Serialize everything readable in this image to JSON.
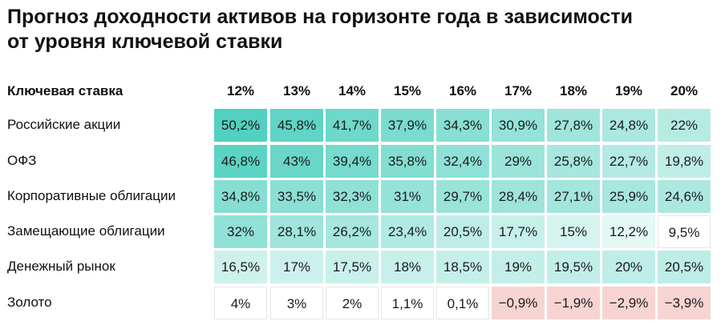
{
  "chart_data": {
    "type": "heatmap",
    "title": "Прогноз доходности активов на горизонте года в зависимости от уровня ключевой ставки",
    "title_lines": [
      "Прогноз доходности активов на горизонте года в зависимости",
      "от уровня ключевой ставки"
    ],
    "row_header": "Ключевая ставка",
    "columns": [
      "12%",
      "13%",
      "14%",
      "15%",
      "16%",
      "17%",
      "18%",
      "19%",
      "20%"
    ],
    "rows": [
      {
        "label": "Российские акции",
        "cells": [
          "50,2%",
          "45,8%",
          "41,7%",
          "37,9%",
          "34,3%",
          "30,9%",
          "27,8%",
          "24,8%",
          "22%"
        ],
        "values": [
          50.2,
          45.8,
          41.7,
          37.9,
          34.3,
          30.9,
          27.8,
          24.8,
          22
        ]
      },
      {
        "label": "ОФЗ",
        "cells": [
          "46,8%",
          "43%",
          "39,4%",
          "35,8%",
          "32,4%",
          "29%",
          "25,8%",
          "22,7%",
          "19,8%"
        ],
        "values": [
          46.8,
          43,
          39.4,
          35.8,
          32.4,
          29,
          25.8,
          22.7,
          19.8
        ]
      },
      {
        "label": "Корпоративные облигации",
        "cells": [
          "34,8%",
          "33,5%",
          "32,3%",
          "31%",
          "29,7%",
          "28,4%",
          "27,1%",
          "25,9%",
          "24,6%"
        ],
        "values": [
          34.8,
          33.5,
          32.3,
          31,
          29.7,
          28.4,
          27.1,
          25.9,
          24.6
        ]
      },
      {
        "label": "Замещающие облигации",
        "cells": [
          "32%",
          "28,1%",
          "26,2%",
          "23,4%",
          "20,5%",
          "17,7%",
          "15%",
          "12,2%",
          "9,5%"
        ],
        "values": [
          32,
          28.1,
          26.2,
          23.4,
          20.5,
          17.7,
          15,
          12.2,
          9.5
        ]
      },
      {
        "label": "Денежный рынок",
        "cells": [
          "16,5%",
          "17%",
          "17,5%",
          "18%",
          "18,5%",
          "19%",
          "19,5%",
          "20%",
          "20,5%"
        ],
        "values": [
          16.5,
          17,
          17.5,
          18,
          18.5,
          19,
          19.5,
          20,
          20.5
        ]
      },
      {
        "label": "Золото",
        "cells": [
          "4%",
          "3%",
          "2%",
          "1,1%",
          "0,1%",
          "−0,9%",
          "−1,9%",
          "−2,9%",
          "−3,9%"
        ],
        "values": [
          4,
          3,
          2,
          1.1,
          0.1,
          -0.9,
          -1.9,
          -2.9,
          -3.9
        ]
      }
    ],
    "colors": {
      "positive_max": "#52d0c0",
      "positive_min": "#e6f8f5",
      "neutral": "#ffffff",
      "negative": "#f7d4d2"
    }
  }
}
